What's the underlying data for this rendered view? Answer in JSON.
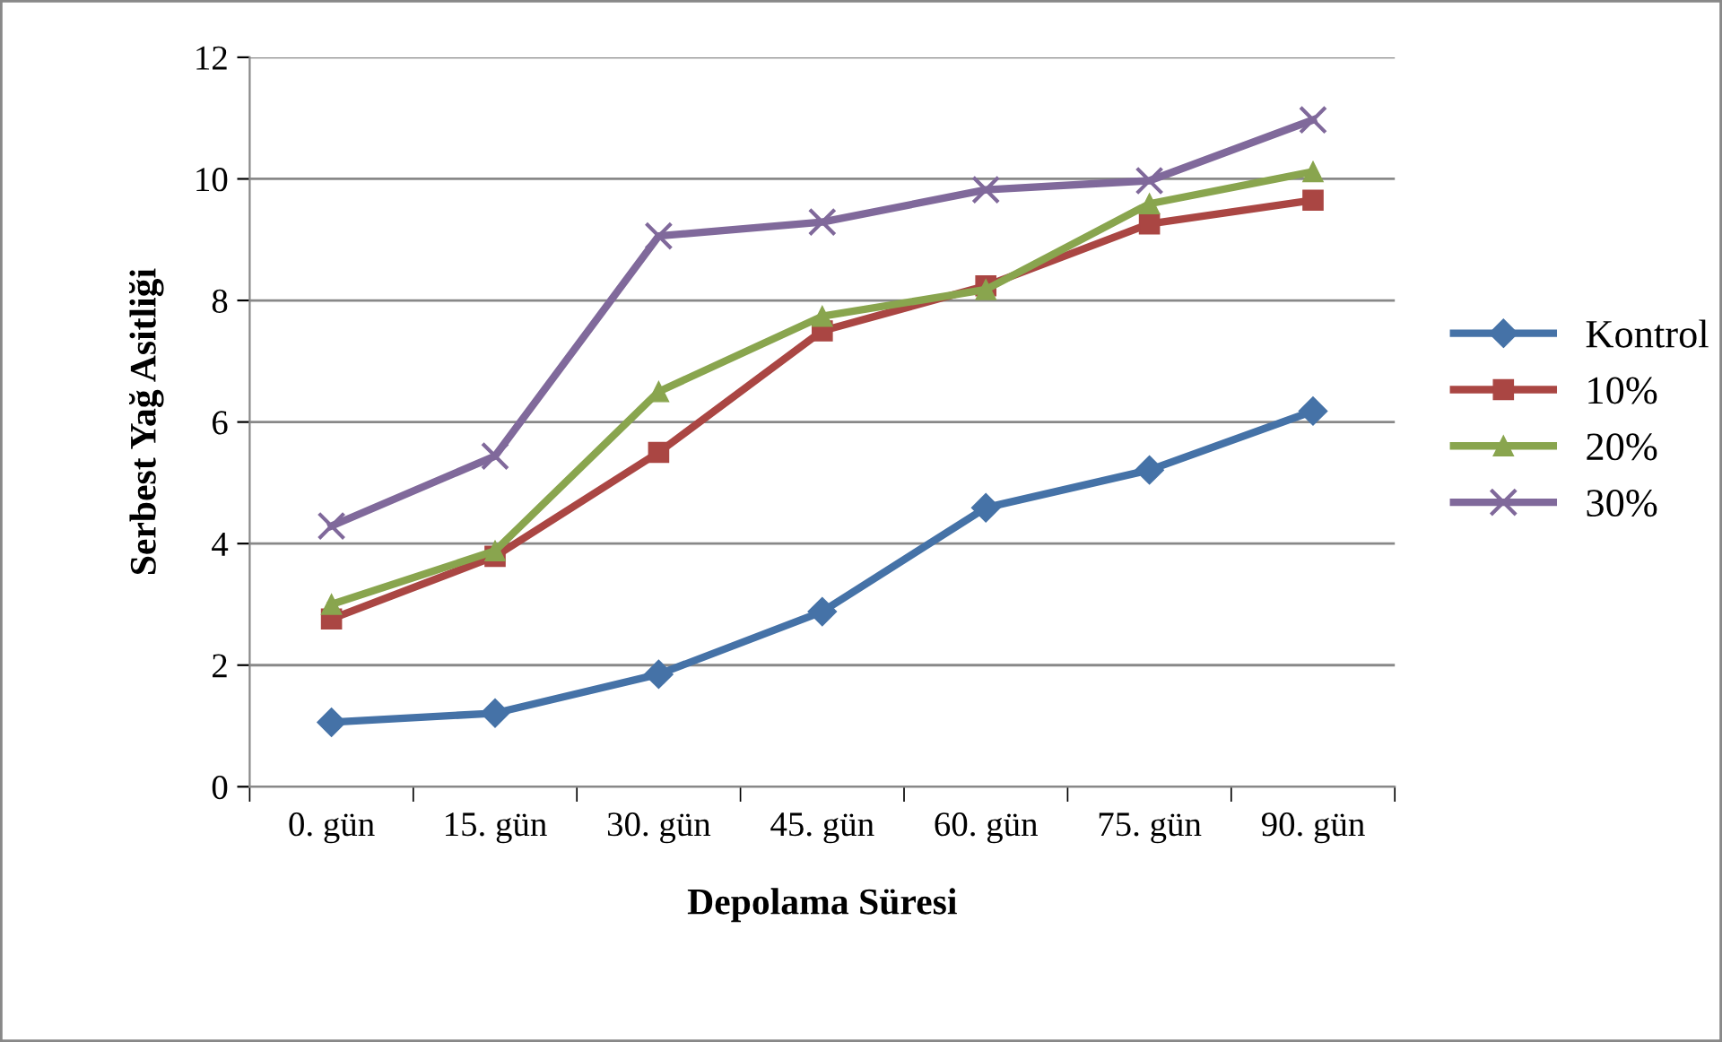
{
  "chart_data": {
    "type": "line",
    "xlabel": "Depolama Süresi",
    "ylabel": "Serbest Yağ Asitliği",
    "categories": [
      "0. gün",
      "15. gün",
      "30. gün",
      "45. gün",
      "60. gün",
      "75. gün",
      "90. gün"
    ],
    "series": [
      {
        "name": "Kontrol",
        "color": "#4572a7",
        "marker": "diamond",
        "values": [
          1.06,
          1.21,
          1.85,
          2.88,
          4.59,
          5.21,
          6.18
        ]
      },
      {
        "name": "10%",
        "color": "#aa4643",
        "marker": "square",
        "values": [
          2.76,
          3.79,
          5.5,
          7.5,
          8.24,
          9.26,
          9.65
        ]
      },
      {
        "name": "20%",
        "color": "#89a54e",
        "marker": "triangle",
        "values": [
          3.0,
          3.88,
          6.5,
          7.74,
          8.18,
          9.59,
          10.12
        ]
      },
      {
        "name": "30%",
        "color": "#80699b",
        "marker": "cross",
        "values": [
          4.29,
          5.44,
          9.06,
          9.29,
          9.82,
          9.97,
          10.97
        ]
      }
    ],
    "ylim": [
      0,
      12
    ],
    "yticks": [
      0,
      2,
      4,
      6,
      8,
      10,
      12
    ],
    "grid": "y",
    "legend": "right",
    "line_style": "solid"
  }
}
